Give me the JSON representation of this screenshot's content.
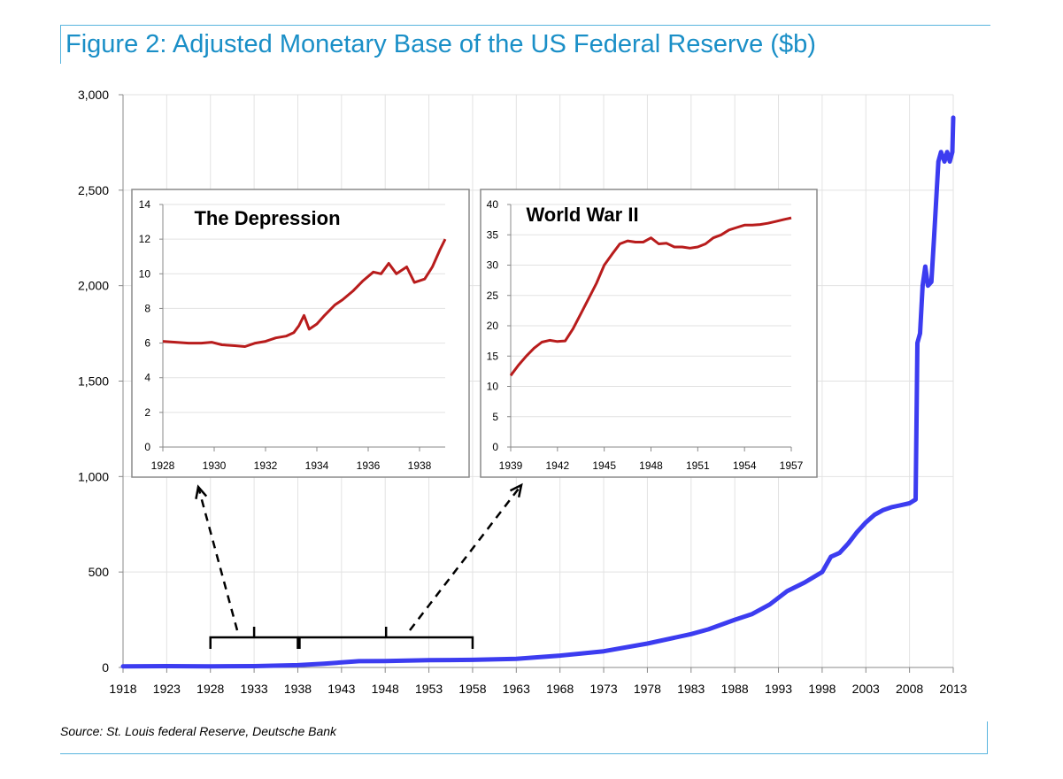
{
  "title": "Figure 2: Adjusted Monetary Base of the US Federal Reserve ($b)",
  "source": "Source: St. Louis federal Reserve, Deutsche Bank",
  "colors": {
    "title": "#1a8fc7",
    "rule": "#58b4de",
    "main_series": "#3c3cf0",
    "inset_series": "#b81c1c",
    "grid": "#e2e2e2"
  },
  "chart_data": [
    {
      "type": "line",
      "title": "",
      "xlabel": "",
      "ylabel": "",
      "xlim": [
        1918,
        2013
      ],
      "ylim": [
        0,
        3000
      ],
      "x_ticks": [
        "1918",
        "1923",
        "1928",
        "1933",
        "1938",
        "1943",
        "1948",
        "1953",
        "1958",
        "1963",
        "1968",
        "1973",
        "1978",
        "1983",
        "1988",
        "1993",
        "1998",
        "2003",
        "2008",
        "2013"
      ],
      "y_ticks": [
        "0",
        "500",
        "1,000",
        "1,500",
        "2,000",
        "2,500",
        "3,000"
      ],
      "y_tick_values": [
        0,
        500,
        1000,
        1500,
        2000,
        2500,
        3000
      ],
      "grid": true,
      "series": [
        {
          "points": [
            [
              1918,
              6
            ],
            [
              1923,
              7
            ],
            [
              1928,
              6
            ],
            [
              1933,
              7
            ],
            [
              1938,
              12
            ],
            [
              1941,
              20
            ],
            [
              1945,
              33
            ],
            [
              1948,
              34
            ],
            [
              1953,
              38
            ],
            [
              1958,
              40
            ],
            [
              1963,
              45
            ],
            [
              1968,
              62
            ],
            [
              1973,
              85
            ],
            [
              1978,
              125
            ],
            [
              1983,
              175
            ],
            [
              1985,
              200
            ],
            [
              1988,
              250
            ],
            [
              1990,
              280
            ],
            [
              1992,
              330
            ],
            [
              1994,
              400
            ],
            [
              1996,
              445
            ],
            [
              1998,
              500
            ],
            [
              1999,
              580
            ],
            [
              2000,
              600
            ],
            [
              2001,
              650
            ],
            [
              2002,
              710
            ],
            [
              2003,
              760
            ],
            [
              2004,
              800
            ],
            [
              2005,
              825
            ],
            [
              2006,
              840
            ],
            [
              2007,
              850
            ],
            [
              2008,
              860
            ],
            [
              2008.7,
              880
            ],
            [
              2008.9,
              1700
            ],
            [
              2009.2,
              1750
            ],
            [
              2009.5,
              2000
            ],
            [
              2009.8,
              2100
            ],
            [
              2010.1,
              2000
            ],
            [
              2010.5,
              2020
            ],
            [
              2010.8,
              2250
            ],
            [
              2011.3,
              2650
            ],
            [
              2011.6,
              2700
            ],
            [
              2012.0,
              2650
            ],
            [
              2012.3,
              2700
            ],
            [
              2012.6,
              2650
            ],
            [
              2012.9,
              2700
            ],
            [
              2013.0,
              2880
            ]
          ]
        }
      ],
      "annotations": {
        "brace_1": [
          1928,
          1938
        ],
        "brace_2": [
          1938,
          1958
        ]
      }
    },
    {
      "type": "line",
      "title": "The Depression",
      "xlim": [
        1928,
        1939
      ],
      "ylim": [
        0,
        14
      ],
      "x_ticks": [
        "1928",
        "1930",
        "1932",
        "1934",
        "1936",
        "1938"
      ],
      "x_tick_values": [
        1928,
        1930,
        1932,
        1934,
        1936,
        1938
      ],
      "y_ticks": [
        "0",
        "2",
        "4",
        "6",
        "8",
        "10",
        "12",
        "14"
      ],
      "y_tick_values": [
        0,
        2,
        4,
        6,
        8,
        10,
        12,
        14
      ],
      "grid": true,
      "series": [
        {
          "points": [
            [
              1928.0,
              6.1
            ],
            [
              1928.5,
              6.05
            ],
            [
              1929.0,
              6.0
            ],
            [
              1929.5,
              6.0
            ],
            [
              1929.9,
              6.05
            ],
            [
              1930.3,
              5.9
            ],
            [
              1930.8,
              5.85
            ],
            [
              1931.2,
              5.8
            ],
            [
              1931.6,
              6.0
            ],
            [
              1932.0,
              6.1
            ],
            [
              1932.4,
              6.3
            ],
            [
              1932.8,
              6.4
            ],
            [
              1933.1,
              6.6
            ],
            [
              1933.3,
              7.0
            ],
            [
              1933.5,
              7.6
            ],
            [
              1933.7,
              6.8
            ],
            [
              1934.0,
              7.1
            ],
            [
              1934.3,
              7.6
            ],
            [
              1934.7,
              8.2
            ],
            [
              1935.0,
              8.5
            ],
            [
              1935.4,
              9.0
            ],
            [
              1935.8,
              9.6
            ],
            [
              1936.2,
              10.1
            ],
            [
              1936.5,
              10.0
            ],
            [
              1936.8,
              10.6
            ],
            [
              1937.1,
              10.0
            ],
            [
              1937.5,
              10.4
            ],
            [
              1937.8,
              9.5
            ],
            [
              1938.2,
              9.7
            ],
            [
              1938.5,
              10.4
            ],
            [
              1938.8,
              11.4
            ],
            [
              1939.0,
              12.0
            ]
          ]
        }
      ]
    },
    {
      "type": "line",
      "title": "World War II",
      "xlim": [
        1939,
        1957
      ],
      "ylim": [
        0,
        40
      ],
      "x_ticks": [
        "1939",
        "1942",
        "1945",
        "1948",
        "1951",
        "1954",
        "1957"
      ],
      "x_tick_values": [
        1939,
        1942,
        1945,
        1948,
        1951,
        1954,
        1957
      ],
      "y_ticks": [
        "0",
        "5",
        "10",
        "15",
        "20",
        "25",
        "30",
        "35",
        "40"
      ],
      "y_tick_values": [
        0,
        5,
        10,
        15,
        20,
        25,
        30,
        35,
        40
      ],
      "grid": true,
      "series": [
        {
          "points": [
            [
              1939.0,
              11.8
            ],
            [
              1939.5,
              13.5
            ],
            [
              1940.0,
              15.0
            ],
            [
              1940.5,
              16.3
            ],
            [
              1941.0,
              17.3
            ],
            [
              1941.5,
              17.6
            ],
            [
              1942.0,
              17.4
            ],
            [
              1942.5,
              17.5
            ],
            [
              1943.0,
              19.5
            ],
            [
              1943.5,
              22.0
            ],
            [
              1944.0,
              24.5
            ],
            [
              1944.5,
              27.0
            ],
            [
              1945.0,
              30.0
            ],
            [
              1945.5,
              31.8
            ],
            [
              1946.0,
              33.5
            ],
            [
              1946.5,
              34.0
            ],
            [
              1947.0,
              33.8
            ],
            [
              1947.5,
              33.8
            ],
            [
              1948.0,
              34.5
            ],
            [
              1948.5,
              33.5
            ],
            [
              1949.0,
              33.6
            ],
            [
              1949.5,
              33.0
            ],
            [
              1950.0,
              33.0
            ],
            [
              1950.5,
              32.8
            ],
            [
              1951.0,
              33.0
            ],
            [
              1951.5,
              33.5
            ],
            [
              1952.0,
              34.5
            ],
            [
              1952.5,
              35.0
            ],
            [
              1953.0,
              35.8
            ],
            [
              1953.5,
              36.2
            ],
            [
              1954.0,
              36.6
            ],
            [
              1954.5,
              36.6
            ],
            [
              1955.0,
              36.7
            ],
            [
              1955.5,
              36.9
            ],
            [
              1956.0,
              37.2
            ],
            [
              1956.5,
              37.5
            ],
            [
              1957.0,
              37.8
            ]
          ]
        }
      ]
    }
  ]
}
